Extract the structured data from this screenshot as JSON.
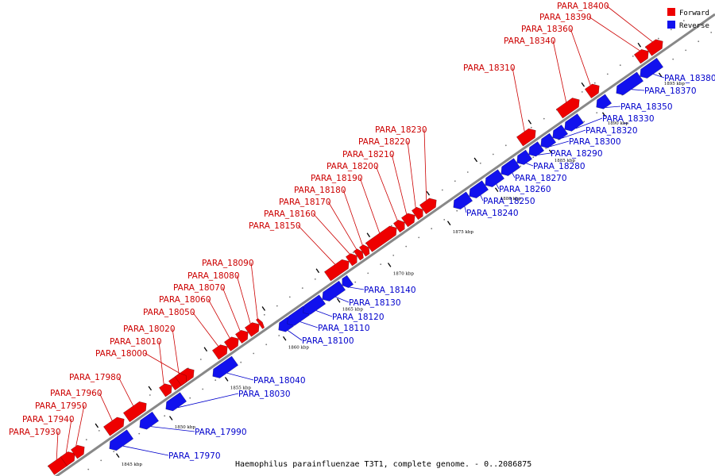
{
  "caption": "Haemophilus parainfluenzae T3T1, complete genome. - 0..2086875",
  "legend": [
    {
      "label": "Forward",
      "color": "#ee0000"
    },
    {
      "label": "Reverse",
      "color": "#1111ee"
    }
  ],
  "colors": {
    "forward": "#ee0000",
    "reverse": "#1111ee",
    "forward_label": "#cc0000",
    "reverse_label": "#0000cc",
    "backbone": "#888888"
  },
  "tick_labels": [
    "1845 kbp",
    "1850 kbp",
    "1855 kbp",
    "1860 kbp",
    "1865 kbp",
    "1870 kbp",
    "1875 kbp",
    "1880 kbp",
    "1885 kbp",
    "1890 kbp",
    "1895 kbp"
  ],
  "forward_genes": [
    "PARA_17930",
    "PARA_17940",
    "PARA_17950",
    "PARA_17960",
    "PARA_17980",
    "PARA_18000",
    "PARA_18010",
    "PARA_18020",
    "PARA_18050",
    "PARA_18060",
    "PARA_18070",
    "PARA_18080",
    "PARA_18090",
    "PARA_18150",
    "PARA_18160",
    "PARA_18170",
    "PARA_18180",
    "PARA_18190",
    "PARA_18200",
    "PARA_18210",
    "PARA_18220",
    "PARA_18230",
    "PARA_18310",
    "PARA_18340",
    "PARA_18360",
    "PARA_18390",
    "PARA_18400"
  ],
  "reverse_genes": [
    "PARA_17970",
    "PARA_17990",
    "PARA_18030",
    "PARA_18040",
    "PARA_18100",
    "PARA_18110",
    "PARA_18120",
    "PARA_18130",
    "PARA_18140",
    "PARA_18240",
    "PARA_18250",
    "PARA_18260",
    "PARA_18270",
    "PARA_18280",
    "PARA_18290",
    "PARA_18300",
    "PARA_18320",
    "PARA_18330",
    "PARA_18350",
    "PARA_18370",
    "PARA_18380"
  ]
}
